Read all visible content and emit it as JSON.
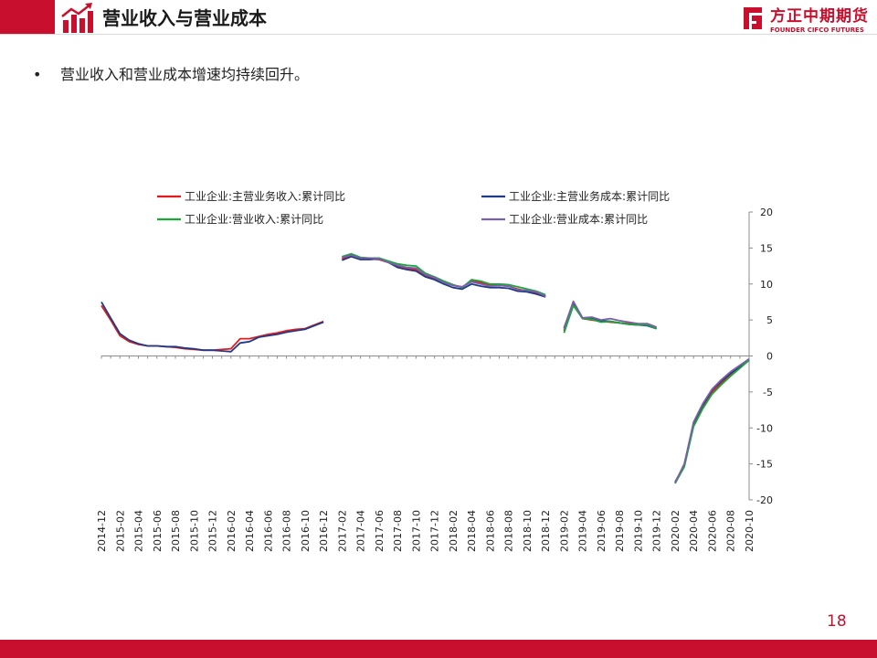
{
  "header": {
    "title": "营业收入与营业成本",
    "brand_cn": "方正中期期货",
    "brand_en": "FOUNDER CIFCO FUTURES"
  },
  "bullet": "营业收入和营业成本增速均持续回升。",
  "page_number": "18",
  "colors": {
    "accent": "#c8102e"
  },
  "chart_data": {
    "type": "line",
    "x": [
      "2014-12",
      "2015-01",
      "2015-02",
      "2015-03",
      "2015-04",
      "2015-05",
      "2015-06",
      "2015-07",
      "2015-08",
      "2015-09",
      "2015-10",
      "2015-11",
      "2015-12",
      "2016-01",
      "2016-02",
      "2016-03",
      "2016-04",
      "2016-05",
      "2016-06",
      "2016-07",
      "2016-08",
      "2016-09",
      "2016-10",
      "2016-11",
      "2016-12",
      "2017-01",
      "2017-02",
      "2017-03",
      "2017-04",
      "2017-05",
      "2017-06",
      "2017-07",
      "2017-08",
      "2017-09",
      "2017-10",
      "2017-11",
      "2017-12",
      "2018-01",
      "2018-02",
      "2018-03",
      "2018-04",
      "2018-05",
      "2018-06",
      "2018-07",
      "2018-08",
      "2018-09",
      "2018-10",
      "2018-11",
      "2018-12",
      "2019-01",
      "2019-02",
      "2019-03",
      "2019-04",
      "2019-05",
      "2019-06",
      "2019-07",
      "2019-08",
      "2019-09",
      "2019-10",
      "2019-11",
      "2019-12",
      "2020-01",
      "2020-02",
      "2020-03",
      "2020-04",
      "2020-05",
      "2020-06",
      "2020-07",
      "2020-08",
      "2020-09",
      "2020-10"
    ],
    "x_tick_labels": [
      "2014-12",
      "2015-02",
      "2015-04",
      "2015-06",
      "2015-08",
      "2015-10",
      "2015-12",
      "2016-02",
      "2016-04",
      "2016-06",
      "2016-08",
      "2016-10",
      "2016-12",
      "2017-02",
      "2017-04",
      "2017-06",
      "2017-08",
      "2017-10",
      "2017-12",
      "2018-02",
      "2018-04",
      "2018-06",
      "2018-08",
      "2018-10",
      "2018-12",
      "2019-02",
      "2019-04",
      "2019-06",
      "2019-08",
      "2019-10",
      "2019-12",
      "2020-02",
      "2020-04",
      "2020-06",
      "2020-08",
      "2020-10"
    ],
    "series": [
      {
        "name": "工业企业:主营业务收入:累计同比",
        "color": "#e41a1c",
        "values": [
          7.0,
          5.0,
          2.8,
          2.0,
          1.6,
          1.4,
          1.4,
          1.3,
          1.2,
          1.0,
          0.9,
          0.8,
          0.8,
          0.9,
          1.0,
          2.4,
          2.4,
          2.7,
          3.0,
          3.2,
          3.5,
          3.7,
          3.8,
          4.3,
          4.8,
          null,
          13.5,
          13.8,
          13.5,
          13.5,
          13.4,
          13.0,
          12.5,
          12.2,
          12.0,
          11.2,
          10.8,
          10.2,
          9.8,
          9.6,
          10.4,
          10.2,
          9.9,
          9.8,
          9.7,
          9.3,
          9.0,
          8.8,
          8.3,
          null,
          3.5,
          7.2,
          5.2,
          5.0,
          4.8,
          4.7,
          4.6,
          4.5,
          4.4,
          4.3,
          3.8,
          null,
          -17.7,
          -15.0,
          -9.5,
          -7.0,
          -5.0,
          -3.8,
          -2.6,
          -1.6,
          -0.5
        ]
      },
      {
        "name": "工业企业:主营业务成本:累计同比",
        "color": "#1f3c88",
        "values": [
          7.5,
          5.3,
          3.1,
          2.2,
          1.7,
          1.4,
          1.4,
          1.3,
          1.3,
          1.1,
          1.0,
          0.8,
          0.8,
          0.7,
          0.6,
          1.8,
          2.0,
          2.6,
          2.8,
          3.0,
          3.3,
          3.5,
          3.7,
          4.2,
          4.7,
          null,
          13.3,
          13.8,
          13.4,
          13.4,
          13.5,
          13.0,
          12.3,
          12.0,
          11.8,
          11.0,
          10.6,
          10.0,
          9.5,
          9.3,
          10.0,
          9.7,
          9.5,
          9.5,
          9.4,
          9.0,
          8.9,
          8.6,
          8.2,
          null,
          3.9,
          7.5,
          5.2,
          5.2,
          4.9,
          4.8,
          4.6,
          4.4,
          4.3,
          4.2,
          3.8,
          null,
          -17.5,
          -15.2,
          -9.3,
          -6.8,
          -4.7,
          -3.5,
          -2.4,
          -1.5,
          -0.5
        ]
      },
      {
        "name": "工业企业:营业收入:累计同比",
        "color": "#1aa83c",
        "values": [
          null,
          null,
          null,
          null,
          null,
          null,
          null,
          null,
          null,
          null,
          null,
          null,
          null,
          null,
          null,
          null,
          null,
          null,
          null,
          null,
          null,
          null,
          null,
          null,
          null,
          null,
          13.8,
          14.2,
          13.7,
          13.6,
          13.6,
          13.2,
          12.8,
          12.6,
          12.5,
          11.5,
          11.0,
          10.4,
          9.9,
          9.5,
          10.6,
          10.4,
          10.0,
          10.0,
          9.9,
          9.6,
          9.3,
          9.0,
          8.5,
          null,
          3.2,
          7.0,
          5.2,
          5.1,
          4.7,
          4.8,
          4.6,
          4.4,
          4.3,
          4.3,
          3.8,
          null,
          -17.7,
          -15.4,
          -9.8,
          -7.3,
          -5.3,
          -4.0,
          -2.8,
          -1.7,
          -0.6
        ]
      },
      {
        "name": "工业企业:营业成本:累计同比",
        "color": "#7b60a8",
        "values": [
          null,
          null,
          null,
          null,
          null,
          null,
          null,
          null,
          null,
          null,
          null,
          null,
          null,
          null,
          null,
          null,
          null,
          null,
          null,
          null,
          null,
          null,
          null,
          null,
          null,
          null,
          13.7,
          14.0,
          13.6,
          13.6,
          13.5,
          13.0,
          12.6,
          12.3,
          12.2,
          11.3,
          10.9,
          10.2,
          9.8,
          9.6,
          10.3,
          10.0,
          9.7,
          9.8,
          9.7,
          9.2,
          9.1,
          8.9,
          8.3,
          null,
          3.8,
          7.6,
          5.3,
          5.4,
          5.0,
          5.2,
          4.9,
          4.7,
          4.5,
          4.5,
          4.0,
          null,
          -17.6,
          -15.0,
          -9.2,
          -6.6,
          -4.6,
          -3.3,
          -2.2,
          -1.3,
          -0.4
        ]
      }
    ],
    "y_axis": {
      "position": "right",
      "ylim": [
        -20,
        20
      ],
      "ticks": [
        20,
        15,
        10,
        5,
        0,
        -5,
        -10,
        -15,
        -20
      ]
    },
    "legend": {
      "placement": "top",
      "columns": 2
    },
    "grid": false
  }
}
